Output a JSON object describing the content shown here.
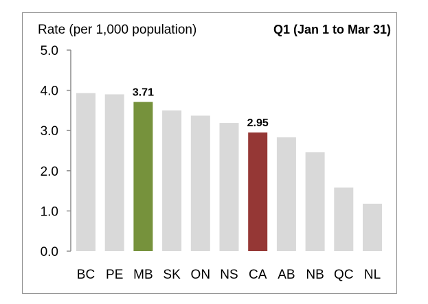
{
  "chart_data": {
    "type": "bar",
    "title": "Q1 (Jan 1 to Mar 31)",
    "ylabel": "Rate (per 1,000 population)",
    "xlabel": "",
    "ylim": [
      0,
      5
    ],
    "yticks": [
      "0.0",
      "1.0",
      "2.0",
      "3.0",
      "4.0",
      "5.0"
    ],
    "ytick_values": [
      0,
      1,
      2,
      3,
      4,
      5
    ],
    "grid": false,
    "legend": "none",
    "categories": [
      "BC",
      "PE",
      "MB",
      "SK",
      "ON",
      "NS",
      "CA",
      "AB",
      "NB",
      "QC",
      "NL"
    ],
    "values": [
      3.93,
      3.9,
      3.71,
      3.5,
      3.37,
      3.19,
      2.95,
      2.83,
      2.46,
      1.58,
      1.18
    ],
    "colors": [
      "#d9d9d9",
      "#d9d9d9",
      "#76923c",
      "#d9d9d9",
      "#d9d9d9",
      "#d9d9d9",
      "#953735",
      "#d9d9d9",
      "#d9d9d9",
      "#d9d9d9",
      "#d9d9d9"
    ],
    "data_labels": {
      "MB": "3.71",
      "CA": "2.95"
    }
  }
}
